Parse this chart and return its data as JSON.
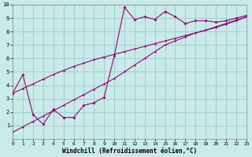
{
  "background_color": "#c8eae8",
  "grid_color": "#a0d0cc",
  "line_color": "#990077",
  "xlim": [
    0,
    23
  ],
  "ylim": [
    0,
    10
  ],
  "xticks": [
    0,
    1,
    2,
    3,
    4,
    5,
    6,
    7,
    8,
    9,
    10,
    11,
    12,
    13,
    14,
    15,
    16,
    17,
    18,
    19,
    20,
    21,
    22,
    23
  ],
  "yticks": [
    1,
    2,
    3,
    4,
    5,
    6,
    7,
    8,
    9,
    10
  ],
  "xlabel": "Windchill (Refroidissement éolien,°C)",
  "line1_x": [
    0,
    1,
    2,
    3,
    4,
    5,
    6,
    7,
    8,
    9,
    10,
    11,
    12,
    13,
    14,
    15,
    16,
    17,
    18,
    19,
    20,
    21,
    22,
    23
  ],
  "line1_y": [
    3.4,
    4.8,
    1.8,
    1.1,
    2.2,
    1.6,
    1.6,
    2.5,
    2.7,
    3.1,
    6.2,
    9.8,
    8.9,
    9.1,
    8.9,
    9.5,
    9.1,
    8.6,
    8.8,
    8.8,
    8.7,
    8.8,
    9.0,
    9.2
  ],
  "line2_x": [
    0,
    1,
    2,
    3,
    4,
    5,
    6,
    7,
    8,
    9,
    10,
    11,
    12,
    13,
    14,
    15,
    16,
    17,
    18,
    19,
    20,
    21,
    22,
    23
  ],
  "line2_y": [
    3.4,
    3.75,
    4.1,
    4.45,
    4.8,
    5.1,
    5.4,
    5.65,
    5.9,
    6.1,
    6.3,
    6.5,
    6.7,
    6.9,
    7.1,
    7.3,
    7.5,
    7.7,
    7.9,
    8.1,
    8.35,
    8.6,
    8.85,
    9.1
  ],
  "line3_x": [
    0,
    1,
    2,
    3,
    4,
    5,
    6,
    7,
    8,
    9,
    10,
    11,
    12,
    13,
    14,
    15,
    16,
    17,
    18,
    19,
    20,
    21,
    22,
    23
  ],
  "line3_y": [
    0.5,
    0.9,
    1.3,
    1.7,
    2.1,
    2.5,
    2.9,
    3.3,
    3.7,
    4.1,
    4.5,
    5.0,
    5.5,
    6.0,
    6.5,
    7.0,
    7.3,
    7.6,
    7.9,
    8.1,
    8.3,
    8.55,
    8.8,
    9.1
  ]
}
